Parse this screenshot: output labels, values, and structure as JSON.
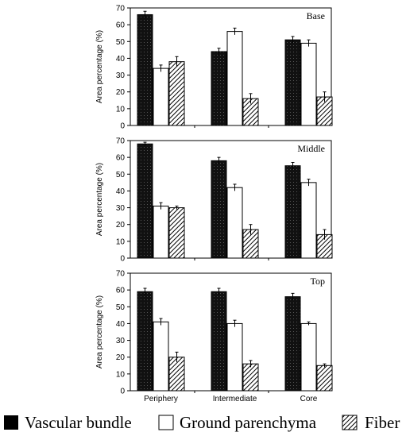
{
  "chart_data": [
    {
      "type": "bar",
      "title": "Base",
      "ylabel": "Area percentage (%)",
      "ylim": [
        0,
        70
      ],
      "yticks": [
        0,
        10,
        20,
        30,
        40,
        50,
        60,
        70
      ],
      "categories": [
        "Periphery",
        "Intermediate",
        "Core"
      ],
      "series": [
        {
          "name": "Vascular bundle",
          "values": [
            66,
            44,
            51
          ],
          "errors": [
            2,
            2,
            2
          ]
        },
        {
          "name": "Ground parenchyma",
          "values": [
            34,
            56,
            49
          ],
          "errors": [
            2,
            2,
            2
          ]
        },
        {
          "name": "Fiber",
          "values": [
            38,
            16,
            17
          ],
          "errors": [
            3,
            3,
            3
          ]
        }
      ]
    },
    {
      "type": "bar",
      "title": "Middle",
      "ylabel": "Area percentage (%)",
      "ylim": [
        0,
        70
      ],
      "yticks": [
        0,
        10,
        20,
        30,
        40,
        50,
        60,
        70
      ],
      "categories": [
        "Periphery",
        "Intermediate",
        "Core"
      ],
      "series": [
        {
          "name": "Vascular bundle",
          "values": [
            68,
            58,
            55
          ],
          "errors": [
            1,
            2,
            2
          ]
        },
        {
          "name": "Ground parenchyma",
          "values": [
            31,
            42,
            45
          ],
          "errors": [
            2,
            2,
            2
          ]
        },
        {
          "name": "Fiber",
          "values": [
            30,
            17,
            14
          ],
          "errors": [
            1,
            3,
            3
          ]
        }
      ]
    },
    {
      "type": "bar",
      "title": "Top",
      "ylabel": "Area percentage (%)",
      "ylim": [
        0,
        70
      ],
      "yticks": [
        0,
        10,
        20,
        30,
        40,
        50,
        60,
        70
      ],
      "categories": [
        "Periphery",
        "Intermediate",
        "Core"
      ],
      "series": [
        {
          "name": "Vascular bundle",
          "values": [
            59,
            59,
            56
          ],
          "errors": [
            2,
            2,
            2
          ]
        },
        {
          "name": "Ground parenchyma",
          "values": [
            41,
            40,
            40
          ],
          "errors": [
            2,
            2,
            1
          ]
        },
        {
          "name": "Fiber",
          "values": [
            20,
            16,
            15
          ],
          "errors": [
            3,
            2,
            1
          ]
        }
      ]
    }
  ],
  "legend": {
    "placement": "bottom",
    "items": [
      {
        "label": "Vascular bundle",
        "fill": "solid-black"
      },
      {
        "label": "Ground parenchyma",
        "fill": "white"
      },
      {
        "label": "Fiber",
        "fill": "diagonal-hatch"
      }
    ]
  },
  "colors": {
    "vascular": "#111111",
    "parenchyma": "#ffffff",
    "fiber_hatch": "#000000"
  }
}
